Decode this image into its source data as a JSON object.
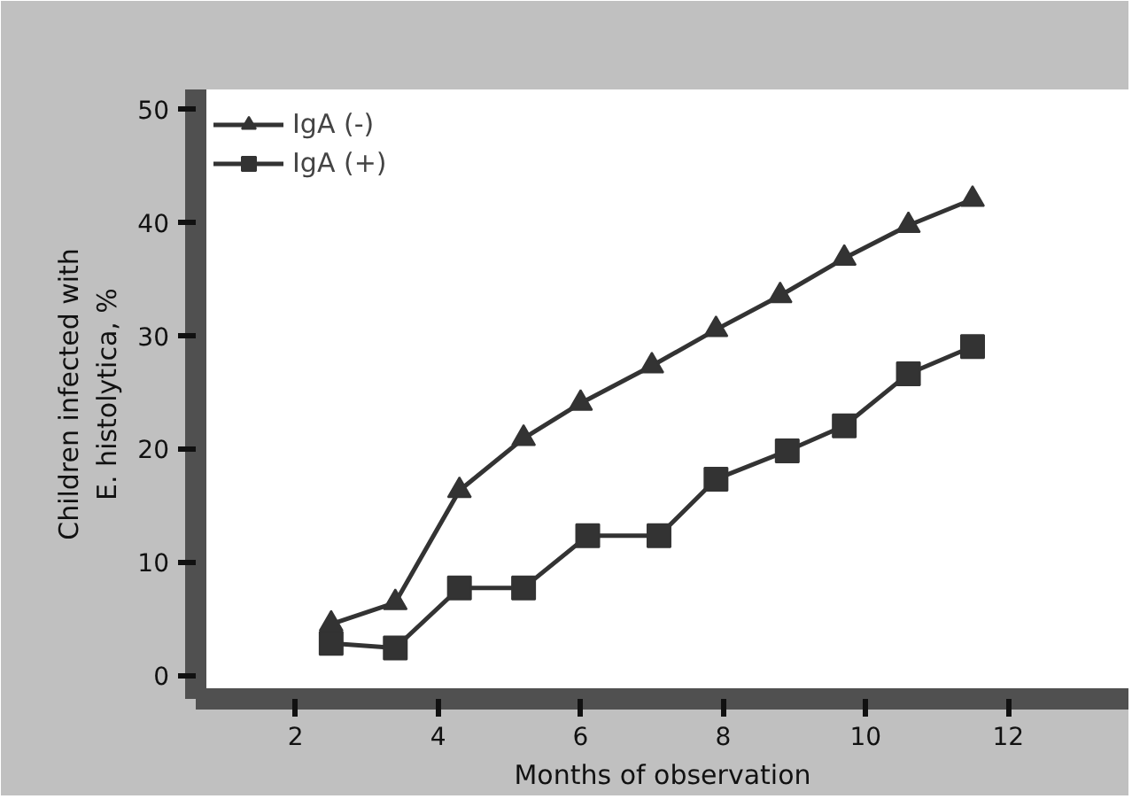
{
  "chart_data": {
    "type": "line",
    "xlabel": "Months of observation",
    "ylabel": "Children infected with\nE. histolytica, %",
    "xlim": [
      0.6,
      13.7
    ],
    "ylim": [
      -2.1,
      51.7
    ],
    "xticks": [
      2,
      4,
      6,
      8,
      10,
      12
    ],
    "yticks": [
      0,
      10,
      20,
      30,
      40,
      50
    ],
    "grid": false,
    "legend": "top left",
    "line_style": "solid",
    "series": [
      {
        "name": "IgA (-)",
        "color": "#333333",
        "marker": "triangle",
        "x": [
          2.5,
          3.4,
          4.3,
          5.2,
          6.0,
          7.0,
          7.9,
          8.8,
          9.7,
          10.6,
          11.5
        ],
        "values": [
          4.5,
          6.4,
          16.3,
          20.9,
          24.0,
          27.3,
          30.5,
          33.5,
          36.8,
          39.7,
          42.0
        ]
      },
      {
        "name": "IgA (+)",
        "color": "#333333",
        "marker": "square",
        "x": [
          2.5,
          3.4,
          4.3,
          5.2,
          6.1,
          7.1,
          7.9,
          8.9,
          9.7,
          10.6,
          11.5
        ],
        "values": [
          2.8,
          2.4,
          7.7,
          7.7,
          12.3,
          12.3,
          17.3,
          19.8,
          22.0,
          26.6,
          29.0
        ]
      }
    ]
  }
}
